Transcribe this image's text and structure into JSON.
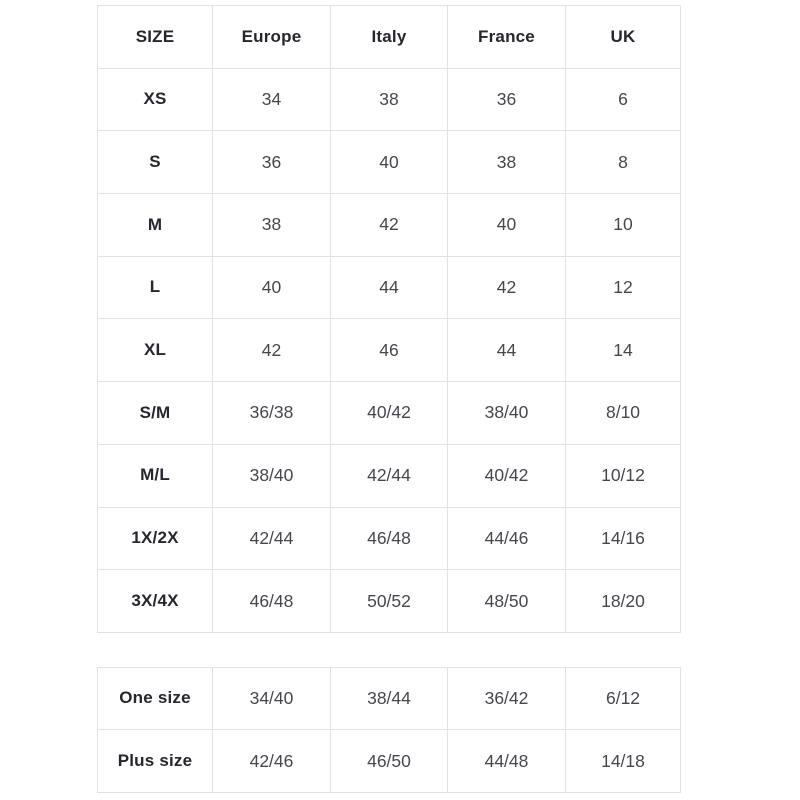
{
  "colors": {
    "background": "#ffffff",
    "border": "#e1e1e2",
    "header_text": "#26262e",
    "cell_text": "#47464e"
  },
  "size_table": {
    "headers": [
      "SIZE",
      "Europe",
      "Italy",
      "France",
      "UK"
    ],
    "rows": [
      {
        "label": "XS",
        "values": [
          "34",
          "38",
          "36",
          "6"
        ]
      },
      {
        "label": "S",
        "values": [
          "36",
          "40",
          "38",
          "8"
        ]
      },
      {
        "label": "M",
        "values": [
          "38",
          "42",
          "40",
          "10"
        ]
      },
      {
        "label": "L",
        "values": [
          "40",
          "44",
          "42",
          "12"
        ]
      },
      {
        "label": "XL",
        "values": [
          "42",
          "46",
          "44",
          "14"
        ]
      },
      {
        "label": "S/M",
        "values": [
          "36/38",
          "40/42",
          "38/40",
          "8/10"
        ]
      },
      {
        "label": "M/L",
        "values": [
          "38/40",
          "42/44",
          "40/42",
          "10/12"
        ]
      },
      {
        "label": "1X/2X",
        "values": [
          "42/44",
          "46/48",
          "44/46",
          "14/16"
        ]
      },
      {
        "label": "3X/4X",
        "values": [
          "46/48",
          "50/52",
          "48/50",
          "18/20"
        ]
      }
    ]
  },
  "extra_table": {
    "rows": [
      {
        "label": "One size",
        "values": [
          "34/40",
          "38/44",
          "36/42",
          "6/12"
        ]
      },
      {
        "label": "Plus size",
        "values": [
          "42/46",
          "46/50",
          "44/48",
          "14/18"
        ]
      }
    ]
  }
}
